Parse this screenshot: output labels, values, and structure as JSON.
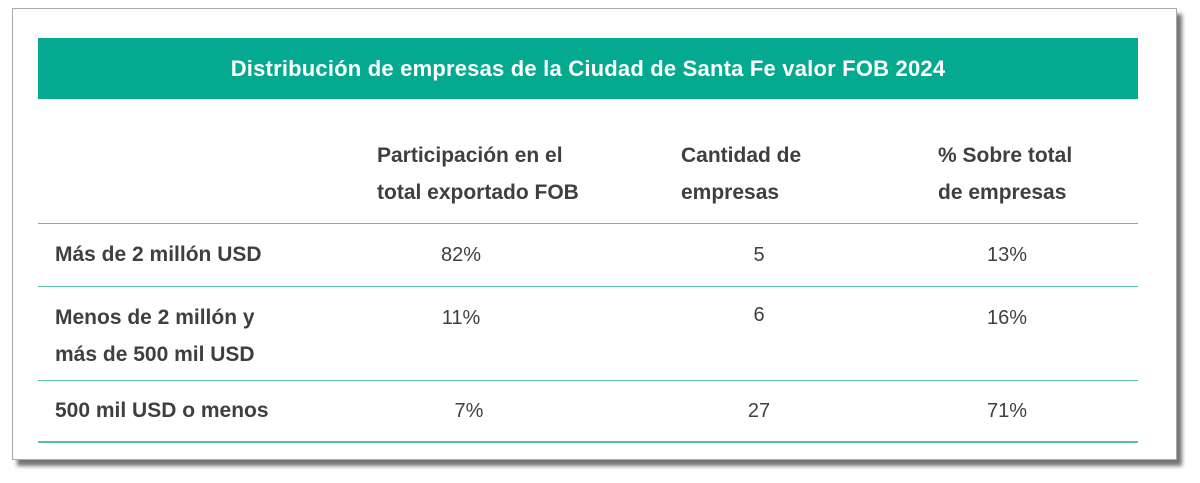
{
  "title": "Distribución de empresas de la Ciudad de Santa Fe valor FOB 2024",
  "colors": {
    "accent": "#04aa8f",
    "rule": "#5bbfae",
    "text": "#404040"
  },
  "headers": [
    "Participación en el\ntotal exportado FOB",
    "Cantidad de\nempresas",
    "% Sobre total\nde empresas"
  ],
  "rows": [
    {
      "label": "Más de 2 millón USD",
      "values": [
        "82%",
        "5",
        "13%"
      ]
    },
    {
      "label": "Menos de 2 millón y\nmás de 500 mil USD",
      "values": [
        "11%",
        "6",
        "16%"
      ]
    },
    {
      "label": "500 mil USD o menos",
      "values": [
        "7%",
        "27",
        "71%"
      ]
    }
  ]
}
